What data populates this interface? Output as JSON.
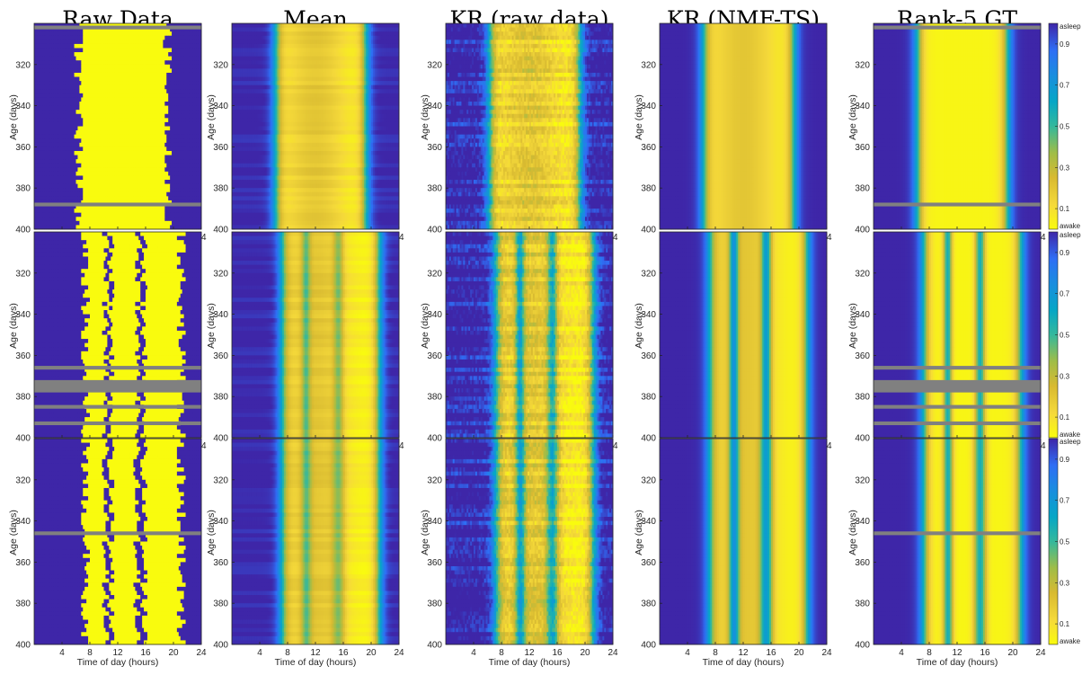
{
  "figure": {
    "column_titles": [
      "Raw Data",
      "Mean",
      "KR (raw data)",
      "KR (NMF-TS)",
      "Rank-5 GT"
    ]
  },
  "chart_data": {
    "type": "heatmap",
    "rows": 3,
    "columns": [
      "Raw Data",
      "Mean",
      "KR (raw data)",
      "KR (NMF-TS)",
      "Rank-5 GT"
    ],
    "xlabel": "Time of day (hours)",
    "ylabel": "Age (days)",
    "xlim": [
      0,
      24
    ],
    "ylim": [
      300,
      400
    ],
    "xticks": [
      4,
      8,
      12,
      16,
      20,
      24
    ],
    "yticks": [
      320,
      340,
      360,
      380,
      400
    ],
    "colorbar": {
      "min_label": "awake",
      "max_label": "asleep",
      "ticks": [
        0.1,
        0.3,
        0.5,
        0.7,
        0.9
      ],
      "range": [
        0,
        1
      ],
      "low_color": "#f9fb0e",
      "high_color": "#3e26a8"
    },
    "missing_color": "#808080",
    "row_profiles": [
      {
        "awake_intervals": [
          [
            6.4,
            19.2
          ]
        ],
        "dips": [],
        "missing_days": [
          302,
          388
        ]
      },
      {
        "awake_intervals": [
          [
            7.3,
            21.1
          ]
        ],
        "dips": [
          [
            10.3,
            11.0
          ],
          [
            14.9,
            15.7
          ]
        ],
        "missing_days": [
          366,
          [
            372,
            378
          ],
          385,
          393
        ]
      },
      {
        "awake_intervals": [
          [
            7.3,
            21.1
          ]
        ],
        "dips": [
          [
            10.3,
            11.1
          ],
          [
            14.8,
            15.8
          ]
        ],
        "missing_days": [
          346
        ]
      }
    ]
  }
}
